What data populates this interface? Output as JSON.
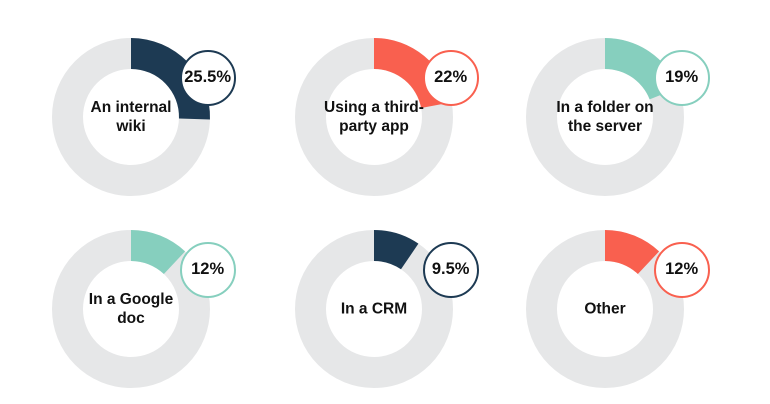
{
  "colors": {
    "track": "#e6e7e8",
    "navy": "#1d3a53",
    "coral": "#f9604f",
    "teal": "#86cfbe"
  },
  "chart_data": [
    {
      "type": "pie",
      "category": "An internal wiki",
      "value": 25.5,
      "value_label": "25.5%",
      "color": "#1d3a53"
    },
    {
      "type": "pie",
      "category": "Using a third-party app",
      "value": 22,
      "value_label": "22%",
      "color": "#f9604f"
    },
    {
      "type": "pie",
      "category": "In a folder on the server",
      "value": 19,
      "value_label": "19%",
      "color": "#86cfbe"
    },
    {
      "type": "pie",
      "category": "In a Google doc",
      "value": 12,
      "value_label": "12%",
      "color": "#86cfbe"
    },
    {
      "type": "pie",
      "category": "In a CRM",
      "value": 9.5,
      "value_label": "9.5%",
      "color": "#1d3a53"
    },
    {
      "type": "pie",
      "category": "Other",
      "value": 12,
      "value_label": "12%",
      "color": "#f9604f"
    }
  ]
}
